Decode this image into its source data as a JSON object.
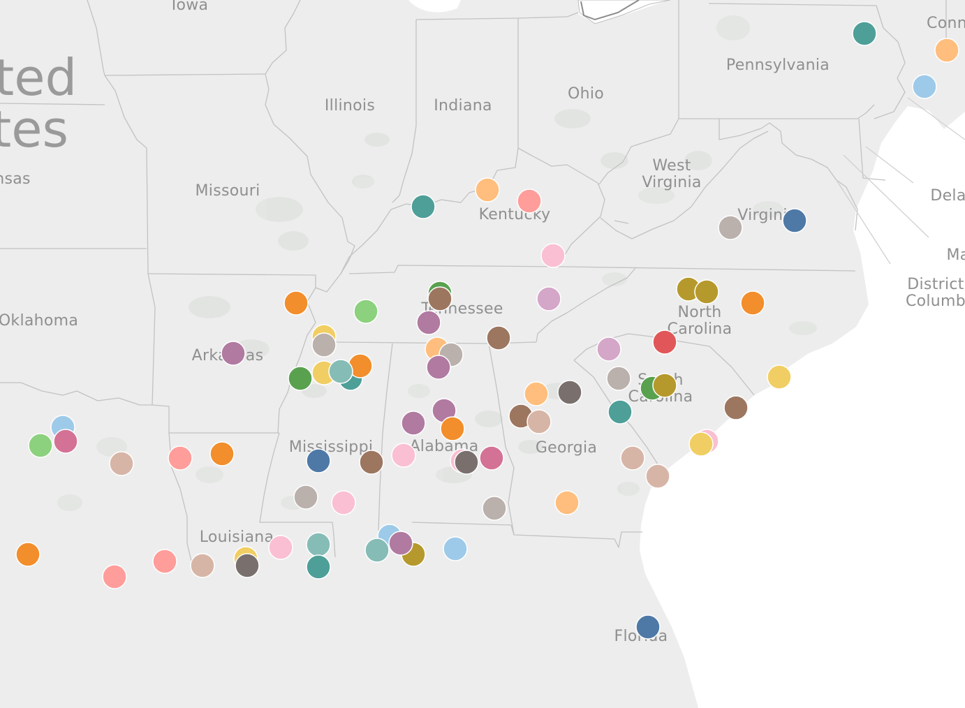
{
  "map": {
    "colors": {
      "land": "#ededed",
      "water": "#ffffff",
      "border": "#bdbdbd",
      "urban": "#e3e5e3",
      "label": "#8f8f8f"
    },
    "country_label": {
      "line1": "ted",
      "line2": "tes"
    },
    "state_labels": [
      {
        "id": "iowa",
        "lines": [
          "Iowa"
        ]
      },
      {
        "id": "illinois",
        "lines": [
          "Illinois"
        ]
      },
      {
        "id": "indiana",
        "lines": [
          "Indiana"
        ]
      },
      {
        "id": "ohio",
        "lines": [
          "Ohio"
        ]
      },
      {
        "id": "pennsylvania",
        "lines": [
          "Pennsylvania"
        ]
      },
      {
        "id": "connecticut",
        "lines": [
          "Conn"
        ]
      },
      {
        "id": "kansas",
        "lines": [
          "nsas"
        ]
      },
      {
        "id": "missouri",
        "lines": [
          "Missouri"
        ]
      },
      {
        "id": "west-virginia",
        "lines": [
          "West",
          "Virginia"
        ]
      },
      {
        "id": "delaware",
        "lines": [
          "Dela"
        ]
      },
      {
        "id": "kentucky",
        "lines": [
          "Kentucky"
        ]
      },
      {
        "id": "virginia",
        "lines": [
          "Virgini"
        ]
      },
      {
        "id": "maryland",
        "lines": [
          "Ma"
        ]
      },
      {
        "id": "district-of-columbia",
        "lines": [
          "District",
          "Columb"
        ]
      },
      {
        "id": "tennessee",
        "lines": [
          "Tennessee"
        ]
      },
      {
        "id": "north-carolina",
        "lines": [
          "North",
          "Carolina"
        ]
      },
      {
        "id": "oklahoma",
        "lines": [
          "Oklahoma"
        ]
      },
      {
        "id": "arkansas",
        "lines": [
          "Arkansas"
        ]
      },
      {
        "id": "south-carolina",
        "lines": [
          "South",
          "Carolina"
        ]
      },
      {
        "id": "mississippi",
        "lines": [
          "Mississippi"
        ]
      },
      {
        "id": "alabama",
        "lines": [
          "Alabama"
        ]
      },
      {
        "id": "georgia",
        "lines": [
          "Georgia"
        ]
      },
      {
        "id": "louisiana",
        "lines": [
          "Louisiana"
        ]
      },
      {
        "id": "florida",
        "lines": [
          "Florida"
        ]
      }
    ],
    "markers": [
      {
        "color": "#4e9f98"
      },
      {
        "color": "#ffbe7d"
      },
      {
        "color": "#9ecae9"
      },
      {
        "color": "#4e9f98"
      },
      {
        "color": "#ffbe7d"
      },
      {
        "color": "#ff9d9a"
      },
      {
        "color": "#4e79a7"
      },
      {
        "color": "#bab0ac"
      },
      {
        "color": "#fabfd2"
      },
      {
        "color": "#d4a6c8"
      },
      {
        "color": "#59a14f"
      },
      {
        "color": "#9d7660"
      },
      {
        "color": "#b6992d"
      },
      {
        "color": "#b6992d"
      },
      {
        "color": "#f28e2b"
      },
      {
        "color": "#f28e2b"
      },
      {
        "color": "#8cd17d"
      },
      {
        "color": "#b07aa1"
      },
      {
        "color": "#9d7660"
      },
      {
        "color": "#b07aa1"
      },
      {
        "color": "#f1ce63"
      },
      {
        "color": "#bab0ac"
      },
      {
        "color": "#ffbe7d"
      },
      {
        "color": "#bab0ac"
      },
      {
        "color": "#b07aa1"
      },
      {
        "color": "#d4a6c8"
      },
      {
        "color": "#e15759"
      },
      {
        "color": "#f1ce63"
      },
      {
        "color": "#4e9f98"
      },
      {
        "color": "#f28e2b"
      },
      {
        "color": "#59a14f"
      },
      {
        "color": "#f1ce63"
      },
      {
        "color": "#86bcb6"
      },
      {
        "color": "#bab0ac"
      },
      {
        "color": "#59a14f"
      },
      {
        "color": "#b6992d"
      },
      {
        "color": "#ffbe7d"
      },
      {
        "color": "#79706e"
      },
      {
        "color": "#9d7660"
      },
      {
        "color": "#d7b5a6"
      },
      {
        "color": "#4e9f98"
      },
      {
        "color": "#b07aa1"
      },
      {
        "color": "#f28e2b"
      },
      {
        "color": "#b07aa1"
      },
      {
        "color": "#9d7660"
      },
      {
        "color": "#9ecae9"
      },
      {
        "color": "#d37295"
      },
      {
        "color": "#8cd17d"
      },
      {
        "color": "#d7b5a6"
      },
      {
        "color": "#ff9d9a"
      },
      {
        "color": "#f28e2b"
      },
      {
        "color": "#4e79a7"
      },
      {
        "color": "#9d7660"
      },
      {
        "color": "#fabfd2"
      },
      {
        "color": "#fabfd2"
      },
      {
        "color": "#79706e"
      },
      {
        "color": "#d37295"
      },
      {
        "color": "#d7b5a6"
      },
      {
        "color": "#fabfd2"
      },
      {
        "color": "#f1ce63"
      },
      {
        "color": "#d7b5a6"
      },
      {
        "color": "#bab0ac"
      },
      {
        "color": "#fabfd2"
      },
      {
        "color": "#bab0ac"
      },
      {
        "color": "#ffbe7d"
      },
      {
        "color": "#86bcb6"
      },
      {
        "color": "#4e9f98"
      },
      {
        "color": "#9ecae9"
      },
      {
        "color": "#86bcb6"
      },
      {
        "color": "#b6992d"
      },
      {
        "color": "#b07aa1"
      },
      {
        "color": "#9ecae9"
      },
      {
        "color": "#f28e2b"
      },
      {
        "color": "#ff9d9a"
      },
      {
        "color": "#f1ce63"
      },
      {
        "color": "#ff9d9a"
      },
      {
        "color": "#d7b5a6"
      },
      {
        "color": "#79706e"
      },
      {
        "color": "#fabfd2"
      },
      {
        "color": "#4e79a7"
      }
    ]
  }
}
